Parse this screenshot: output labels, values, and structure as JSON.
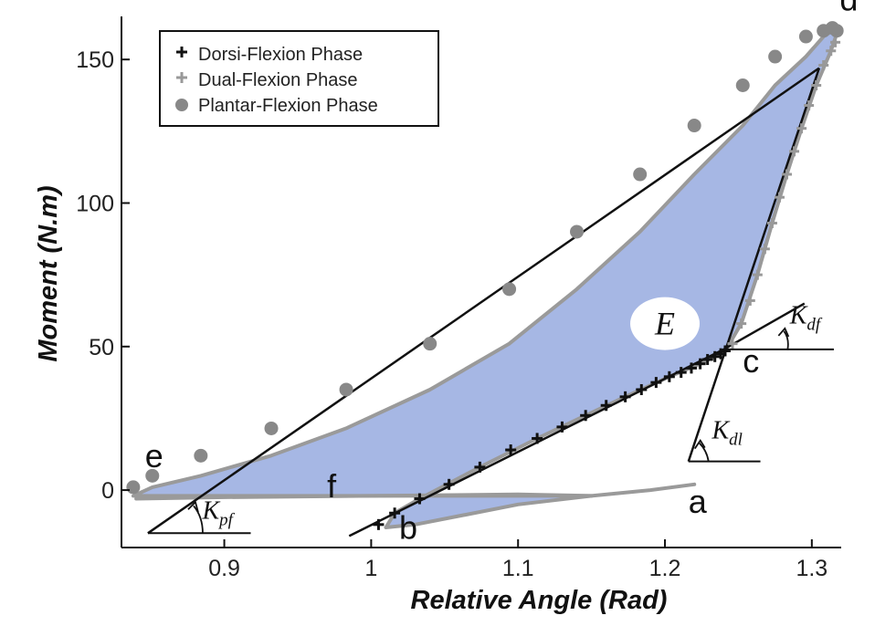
{
  "chart_data": {
    "type": "scatter",
    "xlabel": "Relative Angle (Rad)",
    "ylabel": "Moment (N.m)",
    "xlim": [
      0.83,
      1.32
    ],
    "ylim": [
      -20,
      165
    ],
    "x_ticks": [
      0.9,
      1.0,
      1.1,
      1.2,
      1.3
    ],
    "x_tick_labels": [
      "0.9",
      "1",
      "1.1",
      "1.2",
      "1.3"
    ],
    "y_ticks": [
      0,
      50,
      100,
      150
    ],
    "y_tick_labels": [
      "0",
      "50",
      "100",
      "150"
    ],
    "legend_position": "top-left",
    "fill_color": "#a6b7e4",
    "series": [
      {
        "name": "Dorsi-Flexion Phase",
        "marker": "plus",
        "color": "#111111",
        "x": [
          1.005,
          1.016,
          1.033,
          1.053,
          1.074,
          1.095,
          1.113,
          1.13,
          1.146,
          1.16,
          1.173,
          1.184,
          1.194,
          1.203,
          1.211,
          1.218,
          1.224,
          1.229,
          1.234,
          1.238,
          1.241
        ],
        "y": [
          -12,
          -8,
          -3,
          2,
          8,
          14,
          18,
          22,
          26,
          29.5,
          32.5,
          35,
          37.5,
          39.5,
          41,
          42.5,
          44,
          45.5,
          46.5,
          47.5,
          48.5
        ]
      },
      {
        "name": "Dual-Flexion Phase",
        "marker": "plus",
        "color": "#999999",
        "x": [
          1.246,
          1.252,
          1.258,
          1.263,
          1.268,
          1.273,
          1.278,
          1.283,
          1.288,
          1.293,
          1.298,
          1.303,
          1.308,
          1.313,
          1.316
        ],
        "y": [
          51,
          58,
          66,
          75,
          84,
          93,
          102,
          110,
          118,
          126,
          134,
          141,
          148,
          153,
          156
        ]
      },
      {
        "name": "Plantar-Flexion Phase",
        "marker": "circle",
        "color": "#888888",
        "x": [
          1.317,
          1.314,
          1.308,
          1.296,
          1.275,
          1.253,
          1.22,
          1.183,
          1.14,
          1.094,
          1.04,
          0.983,
          0.932,
          0.884,
          0.851,
          0.838
        ],
        "y": [
          160,
          161,
          160,
          158,
          151,
          141,
          127,
          110,
          90,
          70,
          51,
          35,
          21.5,
          12,
          5,
          1
        ]
      }
    ],
    "curves": {
      "outline": {
        "x": [
          0.838,
          0.851,
          0.884,
          0.932,
          0.983,
          1.04,
          1.094,
          1.14,
          1.183,
          1.22,
          1.253,
          1.275,
          1.296,
          1.308,
          1.314,
          1.317,
          1.313,
          1.303,
          1.293,
          1.283,
          1.273,
          1.263,
          1.252,
          1.241,
          1.224,
          1.203,
          1.173,
          1.146,
          1.113,
          1.074,
          1.033,
          1.016,
          1.01,
          1.03,
          1.06,
          1.1,
          1.15
        ],
        "y": [
          -2,
          1,
          5,
          12,
          21.5,
          35,
          51,
          70,
          90,
          110,
          127,
          141,
          151,
          158,
          160,
          159,
          153,
          141,
          126,
          110,
          93,
          75,
          58,
          48.5,
          44,
          39.5,
          32.5,
          26,
          18,
          8,
          -3,
          -8,
          -13,
          -12,
          -9,
          -5,
          -2
        ]
      },
      "baseline": {
        "x": [
          0.84,
          0.9,
          1.0,
          1.1,
          1.15,
          1.19,
          1.22
        ],
        "y": [
          -3,
          -2.5,
          -2,
          -1.5,
          -2,
          0,
          2
        ]
      }
    },
    "fit_lines": [
      {
        "name": "K_pf-line",
        "x": [
          0.848,
          1.305
        ],
        "y": [
          -15,
          147
        ]
      },
      {
        "name": "K_df-line",
        "x": [
          0.985,
          1.24,
          1.295
        ],
        "y": [
          -16,
          49,
          65
        ]
      },
      {
        "name": "K_dl-line",
        "x": [
          1.216,
          1.242,
          1.305
        ],
        "y": [
          10,
          50,
          147
        ]
      }
    ],
    "annotations": {
      "points": [
        {
          "label": "a",
          "x": 1.216,
          "y": -8
        },
        {
          "label": "b",
          "x": 1.019,
          "y": -17
        },
        {
          "label": "c",
          "x": 1.253,
          "y": 41
        },
        {
          "label": "d",
          "x": 1.319,
          "y": 167
        },
        {
          "label": "e",
          "x": 0.846,
          "y": 8
        },
        {
          "label": "f",
          "x": 0.97,
          "y": -2.5
        }
      ],
      "energy": {
        "symbol": "E",
        "x": 1.2,
        "y": 58
      },
      "k_labels": [
        {
          "main": "K",
          "sub": "pf",
          "x": 0.885,
          "y": -10
        },
        {
          "main": "K",
          "sub": "df",
          "x": 1.285,
          "y": 58
        },
        {
          "main": "K",
          "sub": "dl",
          "x": 1.232,
          "y": 18
        }
      ]
    }
  }
}
